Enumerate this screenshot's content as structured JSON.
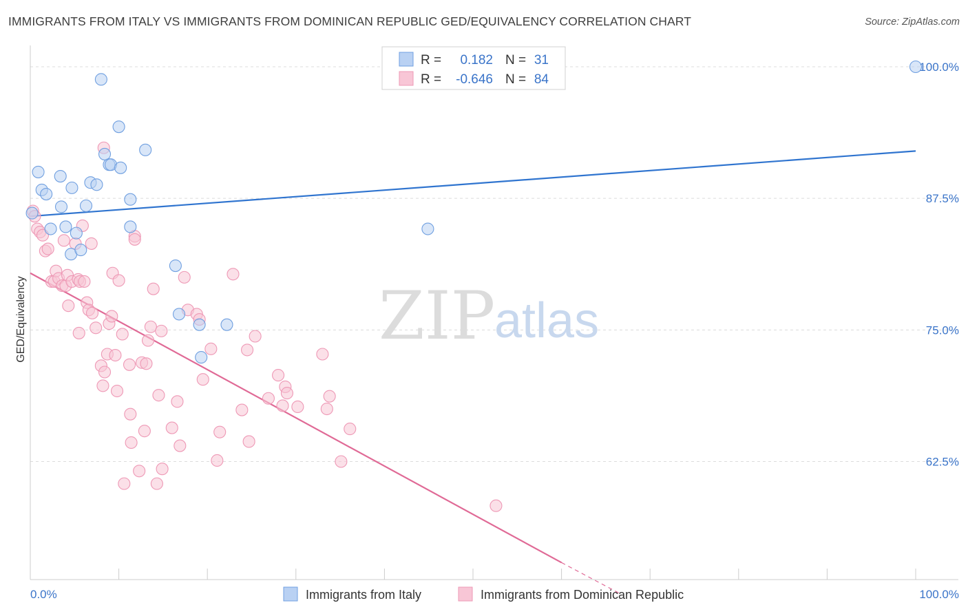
{
  "title": "IMMIGRANTS FROM ITALY VS IMMIGRANTS FROM DOMINICAN REPUBLIC GED/EQUIVALENCY CORRELATION CHART",
  "source": "Source: ZipAtlas.com",
  "watermark": {
    "zip": "ZIP",
    "atlas": "atlas"
  },
  "chart_data": {
    "type": "scatter",
    "ylabel": "GED/Equivalency",
    "xlabel": "",
    "xlim": [
      0,
      100
    ],
    "ylim": [
      50,
      101.5
    ],
    "x_tick_labels": [
      {
        "value": 0,
        "label": "0.0%"
      },
      {
        "value": 100,
        "label": "100.0%"
      }
    ],
    "y_ticks": [
      {
        "value": 100,
        "label": "100.0%"
      },
      {
        "value": 87.5,
        "label": "87.5%"
      },
      {
        "value": 75,
        "label": "75.0%"
      },
      {
        "value": 62.5,
        "label": "62.5%"
      }
    ],
    "grid": "horizontal dashed",
    "legend_position": "top-center",
    "series": [
      {
        "name": "Immigrants from Italy",
        "color": "#6f9fe0",
        "fill": "#b9d1f3",
        "line_color": "#2f74cf",
        "R": "0.182",
        "N": "31",
        "trend": {
          "x": [
            0,
            100
          ],
          "y": [
            85.8,
            92.0
          ]
        },
        "points": [
          [
            0.2,
            86.1
          ],
          [
            0.9,
            90.0
          ],
          [
            1.3,
            88.3
          ],
          [
            1.8,
            87.9
          ],
          [
            3.4,
            89.6
          ],
          [
            3.5,
            86.7
          ],
          [
            2.3,
            84.6
          ],
          [
            4.0,
            84.8
          ],
          [
            4.6,
            82.2
          ],
          [
            4.7,
            88.5
          ],
          [
            5.2,
            84.2
          ],
          [
            5.7,
            82.6
          ],
          [
            6.3,
            86.8
          ],
          [
            6.8,
            89.0
          ],
          [
            7.5,
            88.8
          ],
          [
            8.0,
            98.8
          ],
          [
            8.4,
            91.7
          ],
          [
            8.9,
            90.7
          ],
          [
            9.1,
            90.7
          ],
          [
            10.0,
            94.3
          ],
          [
            10.2,
            90.4
          ],
          [
            11.3,
            87.4
          ],
          [
            13.0,
            92.1
          ],
          [
            11.3,
            84.8
          ],
          [
            16.4,
            81.1
          ],
          [
            16.8,
            76.5
          ],
          [
            19.1,
            75.5
          ],
          [
            19.3,
            72.4
          ],
          [
            22.2,
            75.5
          ],
          [
            44.9,
            84.6
          ],
          [
            100.0,
            100.0
          ]
        ]
      },
      {
        "name": "Immigrants from Dominican Republic",
        "color": "#ee98b5",
        "fill": "#f8c6d6",
        "line_color": "#e06a96",
        "R": "-0.646",
        "N": "84",
        "trend": {
          "x": [
            0,
            60
          ],
          "y": [
            80.4,
            52.9
          ]
        },
        "trend_dashed": {
          "x": [
            60,
            66.5
          ],
          "y": [
            52.9,
            50.0
          ]
        },
        "points": [
          [
            0.3,
            86.3
          ],
          [
            0.5,
            85.8
          ],
          [
            0.8,
            84.6
          ],
          [
            1.1,
            84.3
          ],
          [
            1.4,
            84.0
          ],
          [
            1.7,
            82.5
          ],
          [
            2.0,
            82.7
          ],
          [
            2.4,
            79.6
          ],
          [
            2.7,
            79.6
          ],
          [
            2.9,
            80.6
          ],
          [
            3.2,
            79.9
          ],
          [
            3.6,
            79.2
          ],
          [
            3.8,
            83.5
          ],
          [
            4.0,
            79.2
          ],
          [
            4.2,
            80.2
          ],
          [
            4.3,
            77.3
          ],
          [
            4.7,
            79.6
          ],
          [
            5.1,
            83.2
          ],
          [
            5.4,
            79.8
          ],
          [
            5.6,
            79.6
          ],
          [
            5.5,
            74.7
          ],
          [
            5.9,
            84.9
          ],
          [
            6.1,
            79.6
          ],
          [
            6.4,
            77.6
          ],
          [
            6.6,
            76.9
          ],
          [
            6.9,
            83.2
          ],
          [
            7.0,
            76.6
          ],
          [
            7.4,
            75.2
          ],
          [
            8.0,
            71.6
          ],
          [
            8.2,
            69.7
          ],
          [
            8.3,
            92.3
          ],
          [
            8.4,
            71.0
          ],
          [
            8.7,
            72.7
          ],
          [
            8.9,
            75.6
          ],
          [
            9.2,
            76.3
          ],
          [
            9.3,
            80.4
          ],
          [
            9.6,
            72.6
          ],
          [
            9.8,
            69.2
          ],
          [
            10.0,
            79.7
          ],
          [
            10.4,
            74.6
          ],
          [
            10.6,
            60.4
          ],
          [
            11.2,
            71.7
          ],
          [
            11.4,
            64.3
          ],
          [
            11.3,
            67.0
          ],
          [
            11.8,
            83.9
          ],
          [
            11.8,
            83.6
          ],
          [
            12.3,
            61.6
          ],
          [
            12.6,
            71.9
          ],
          [
            12.9,
            65.4
          ],
          [
            13.1,
            71.8
          ],
          [
            13.3,
            74.0
          ],
          [
            13.6,
            75.3
          ],
          [
            13.9,
            78.9
          ],
          [
            14.3,
            60.4
          ],
          [
            14.5,
            68.8
          ],
          [
            14.8,
            74.9
          ],
          [
            14.9,
            61.8
          ],
          [
            16.0,
            65.7
          ],
          [
            16.6,
            68.2
          ],
          [
            16.9,
            64.0
          ],
          [
            17.4,
            80.0
          ],
          [
            17.8,
            76.9
          ],
          [
            18.8,
            76.5
          ],
          [
            19.1,
            76.0
          ],
          [
            19.5,
            70.3
          ],
          [
            20.4,
            73.2
          ],
          [
            21.1,
            62.6
          ],
          [
            21.4,
            65.3
          ],
          [
            22.9,
            80.3
          ],
          [
            23.9,
            67.4
          ],
          [
            24.7,
            64.4
          ],
          [
            25.4,
            74.4
          ],
          [
            24.5,
            73.1
          ],
          [
            26.9,
            68.5
          ],
          [
            28.0,
            70.7
          ],
          [
            28.5,
            67.8
          ],
          [
            28.8,
            69.6
          ],
          [
            29.0,
            69.0
          ],
          [
            30.2,
            67.7
          ],
          [
            33.0,
            72.7
          ],
          [
            33.5,
            67.5
          ],
          [
            33.8,
            68.7
          ],
          [
            35.1,
            62.5
          ],
          [
            36.1,
            65.6
          ],
          [
            52.6,
            58.3
          ]
        ]
      }
    ]
  }
}
